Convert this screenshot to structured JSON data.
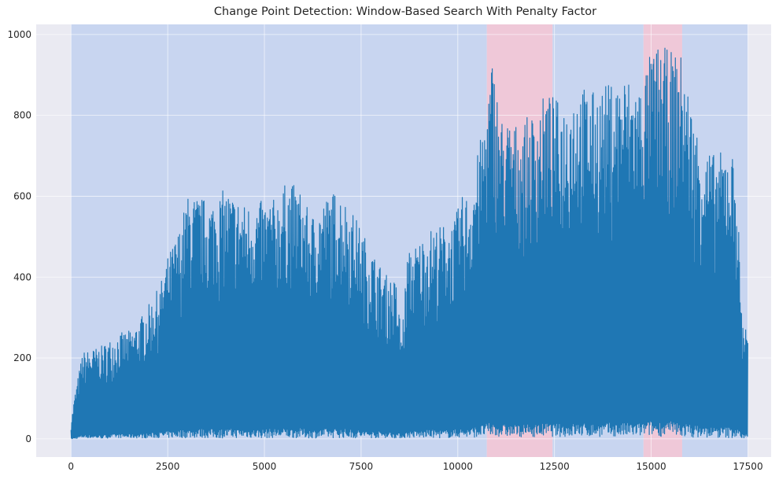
{
  "chart_data": {
    "type": "line",
    "title": "Change Point Detection: Window-Based Search With Penalty Factor",
    "xlabel": "",
    "ylabel": "",
    "xlim": [
      -900,
      18100
    ],
    "ylim": [
      -45,
      1025
    ],
    "x_ticks": [
      0,
      2500,
      5000,
      7500,
      10000,
      12500,
      15000,
      17500
    ],
    "y_ticks": [
      0,
      200,
      400,
      600,
      800,
      1000
    ],
    "grid": true,
    "legend": "none",
    "series": [
      {
        "color": "#1f77b4",
        "envelope_x": [
          0,
          100,
          300,
          500,
          800,
          1200,
          1600,
          2000,
          2300,
          2500,
          2800,
          3000,
          3300,
          3600,
          4000,
          4500,
          5000,
          5300,
          5600,
          5900,
          6200,
          6500,
          6900,
          7300,
          7700,
          8100,
          8400,
          8550,
          8700,
          9000,
          9300,
          9600,
          9900,
          10100,
          10300,
          10500,
          10700,
          10900,
          11100,
          11500,
          11900,
          12300,
          12700,
          13100,
          13500,
          13900,
          14300,
          14700,
          15000,
          15200,
          15500,
          15800,
          16100,
          16400,
          16700,
          17000,
          17200,
          17350,
          17500
        ],
        "y_max": [
          40,
          110,
          215,
          220,
          230,
          260,
          270,
          330,
          380,
          450,
          520,
          600,
          600,
          590,
          620,
          580,
          590,
          595,
          640,
          620,
          550,
          590,
          620,
          560,
          480,
          410,
          390,
          260,
          460,
          490,
          520,
          530,
          540,
          600,
          610,
          700,
          800,
          950,
          800,
          780,
          800,
          860,
          830,
          880,
          860,
          880,
          900,
          880,
          960,
          975,
          960,
          950,
          790,
          720,
          700,
          730,
          680,
          290,
          310
        ],
        "y_min": [
          0,
          0,
          3,
          2,
          1,
          3,
          2,
          2,
          3,
          2,
          3,
          2,
          3,
          2,
          2,
          3,
          2,
          3,
          2,
          3,
          2,
          2,
          3,
          2,
          2,
          3,
          2,
          2,
          3,
          2,
          3,
          2,
          3,
          4,
          3,
          5,
          6,
          5,
          6,
          5,
          5,
          6,
          5,
          6,
          5,
          6,
          5,
          6,
          8,
          6,
          7,
          5,
          4,
          3,
          3,
          2,
          3,
          2,
          2
        ]
      }
    ],
    "regions": [
      {
        "x0": 0,
        "x1": 10750,
        "color": "#c8d5f0"
      },
      {
        "x0": 10750,
        "x1": 12450,
        "color": "#efc8d8"
      },
      {
        "x0": 12450,
        "x1": 14800,
        "color": "#c8d5f0"
      },
      {
        "x0": 14800,
        "x1": 15800,
        "color": "#efc8d8"
      },
      {
        "x0": 15800,
        "x1": 17500,
        "color": "#c8d5f0"
      }
    ],
    "background": "#eaeaf2"
  }
}
